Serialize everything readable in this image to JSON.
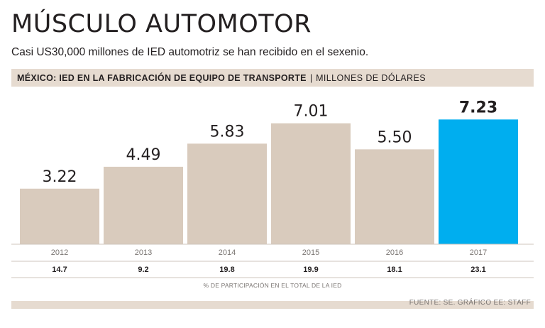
{
  "header": {
    "title": "MÚSCULO AUTOMOTOR",
    "subtitle": "Casi US30,000 millones de IED automotriz se han recibido en el sexenio."
  },
  "band": {
    "title": "MÉXICO: IED EN LA FABRICACIÓN DE EQUIPO DE TRANSPORTE",
    "separator": "|",
    "unit": "MILLONES DE DÓLARES"
  },
  "chart_data": {
    "type": "bar",
    "title": "MÉXICO: IED EN LA FABRICACIÓN DE EQUIPO DE TRANSPORTE",
    "ylabel": "MILLONES DE DÓLARES",
    "xlabel": "",
    "categories": [
      "2012",
      "2013",
      "2014",
      "2015",
      "2016",
      "2017"
    ],
    "values": [
      3.22,
      4.49,
      5.83,
      7.01,
      5.5,
      7.23
    ],
    "value_labels": [
      "3.22",
      "4.49",
      "5.83",
      "7.01",
      "5.50",
      "7.23"
    ],
    "highlight_index": 5,
    "secondary_row": {
      "label": "% DE PARTICIPACIÓN EN EL TOTAL DE LA IED",
      "values": [
        "14.7",
        "9.2",
        "19.8",
        "19.9",
        "18.1",
        "23.1"
      ]
    },
    "colors": {
      "bar": "#d9cbbd",
      "highlight": "#00aeef"
    },
    "grid": false
  },
  "footer": {
    "source": "FUENTE: SE.  GRÁFICO EE: STAFF"
  }
}
